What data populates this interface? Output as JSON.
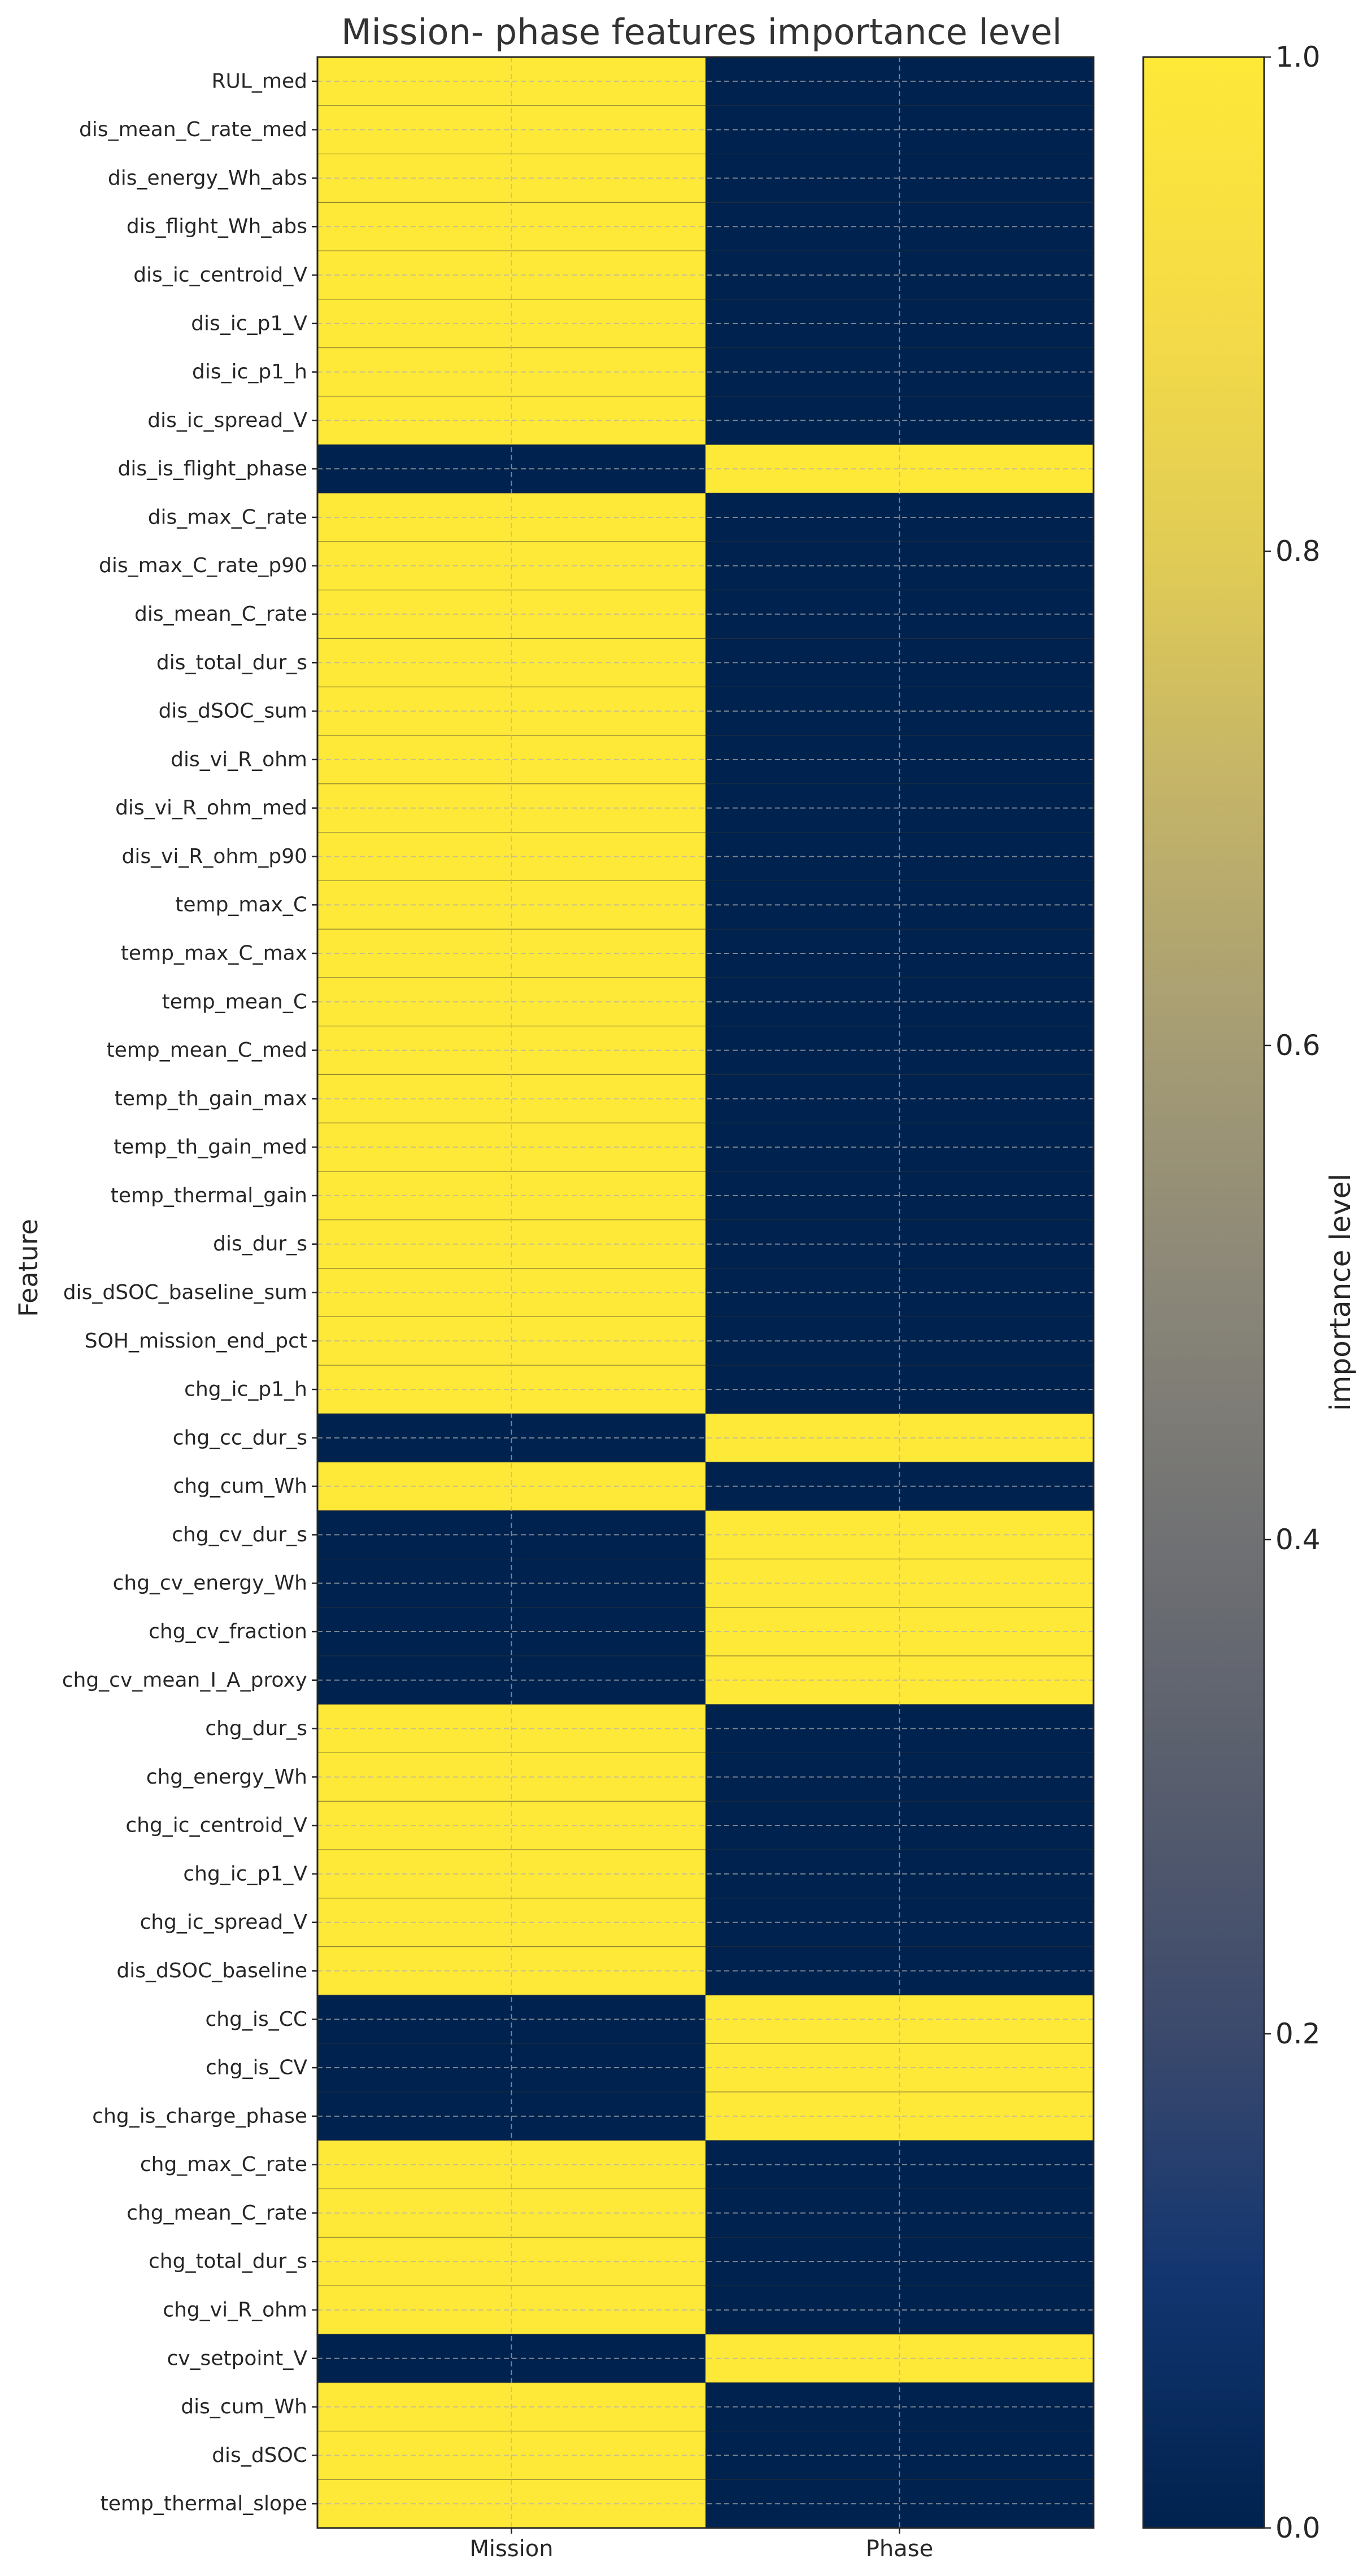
{
  "chart_data": {
    "type": "heatmap",
    "title": "Mission- phase features importance level",
    "xlabel": "",
    "ylabel": "Feature",
    "columns": [
      "Mission",
      "Phase"
    ],
    "rows": [
      "RUL_med",
      "dis_mean_C_rate_med",
      "dis_energy_Wh_abs",
      "dis_flight_Wh_abs",
      "dis_ic_centroid_V",
      "dis_ic_p1_V",
      "dis_ic_p1_h",
      "dis_ic_spread_V",
      "dis_is_flight_phase",
      "dis_max_C_rate",
      "dis_max_C_rate_p90",
      "dis_mean_C_rate",
      "dis_total_dur_s",
      "dis_dSOC_sum",
      "dis_vi_R_ohm",
      "dis_vi_R_ohm_med",
      "dis_vi_R_ohm_p90",
      "temp_max_C",
      "temp_max_C_max",
      "temp_mean_C",
      "temp_mean_C_med",
      "temp_th_gain_max",
      "temp_th_gain_med",
      "temp_thermal_gain",
      "dis_dur_s",
      "dis_dSOC_baseline_sum",
      "SOH_mission_end_pct",
      "chg_ic_p1_h",
      "chg_cc_dur_s",
      "chg_cum_Wh",
      "chg_cv_dur_s",
      "chg_cv_energy_Wh",
      "chg_cv_fraction",
      "chg_cv_mean_I_A_proxy",
      "chg_dur_s",
      "chg_energy_Wh",
      "chg_ic_centroid_V",
      "chg_ic_p1_V",
      "chg_ic_spread_V",
      "dis_dSOC_baseline",
      "chg_is_CC",
      "chg_is_CV",
      "chg_is_charge_phase",
      "chg_max_C_rate",
      "chg_mean_C_rate",
      "chg_total_dur_s",
      "chg_vi_R_ohm",
      "cv_setpoint_V",
      "dis_cum_Wh",
      "dis_dSOC",
      "temp_thermal_slope"
    ],
    "values": [
      [
        1,
        0
      ],
      [
        1,
        0
      ],
      [
        1,
        0
      ],
      [
        1,
        0
      ],
      [
        1,
        0
      ],
      [
        1,
        0
      ],
      [
        1,
        0
      ],
      [
        1,
        0
      ],
      [
        0,
        1
      ],
      [
        1,
        0
      ],
      [
        1,
        0
      ],
      [
        1,
        0
      ],
      [
        1,
        0
      ],
      [
        1,
        0
      ],
      [
        1,
        0
      ],
      [
        1,
        0
      ],
      [
        1,
        0
      ],
      [
        1,
        0
      ],
      [
        1,
        0
      ],
      [
        1,
        0
      ],
      [
        1,
        0
      ],
      [
        1,
        0
      ],
      [
        1,
        0
      ],
      [
        1,
        0
      ],
      [
        1,
        0
      ],
      [
        1,
        0
      ],
      [
        1,
        0
      ],
      [
        1,
        0
      ],
      [
        0,
        1
      ],
      [
        1,
        0
      ],
      [
        0,
        1
      ],
      [
        0,
        1
      ],
      [
        0,
        1
      ],
      [
        0,
        1
      ],
      [
        1,
        0
      ],
      [
        1,
        0
      ],
      [
        1,
        0
      ],
      [
        1,
        0
      ],
      [
        1,
        0
      ],
      [
        1,
        0
      ],
      [
        0,
        1
      ],
      [
        0,
        1
      ],
      [
        0,
        1
      ],
      [
        1,
        0
      ],
      [
        1,
        0
      ],
      [
        1,
        0
      ],
      [
        1,
        0
      ],
      [
        0,
        1
      ],
      [
        1,
        0
      ],
      [
        1,
        0
      ],
      [
        1,
        0
      ]
    ],
    "colorbar": {
      "label": "importance level",
      "range": [
        0,
        1
      ],
      "ticks": [
        "0.0",
        "0.2",
        "0.4",
        "0.6",
        "0.8",
        "1.0"
      ],
      "colormap": "cividis"
    },
    "grid": true,
    "colors": {
      "low": "#00224e",
      "high": "#fee838"
    }
  }
}
